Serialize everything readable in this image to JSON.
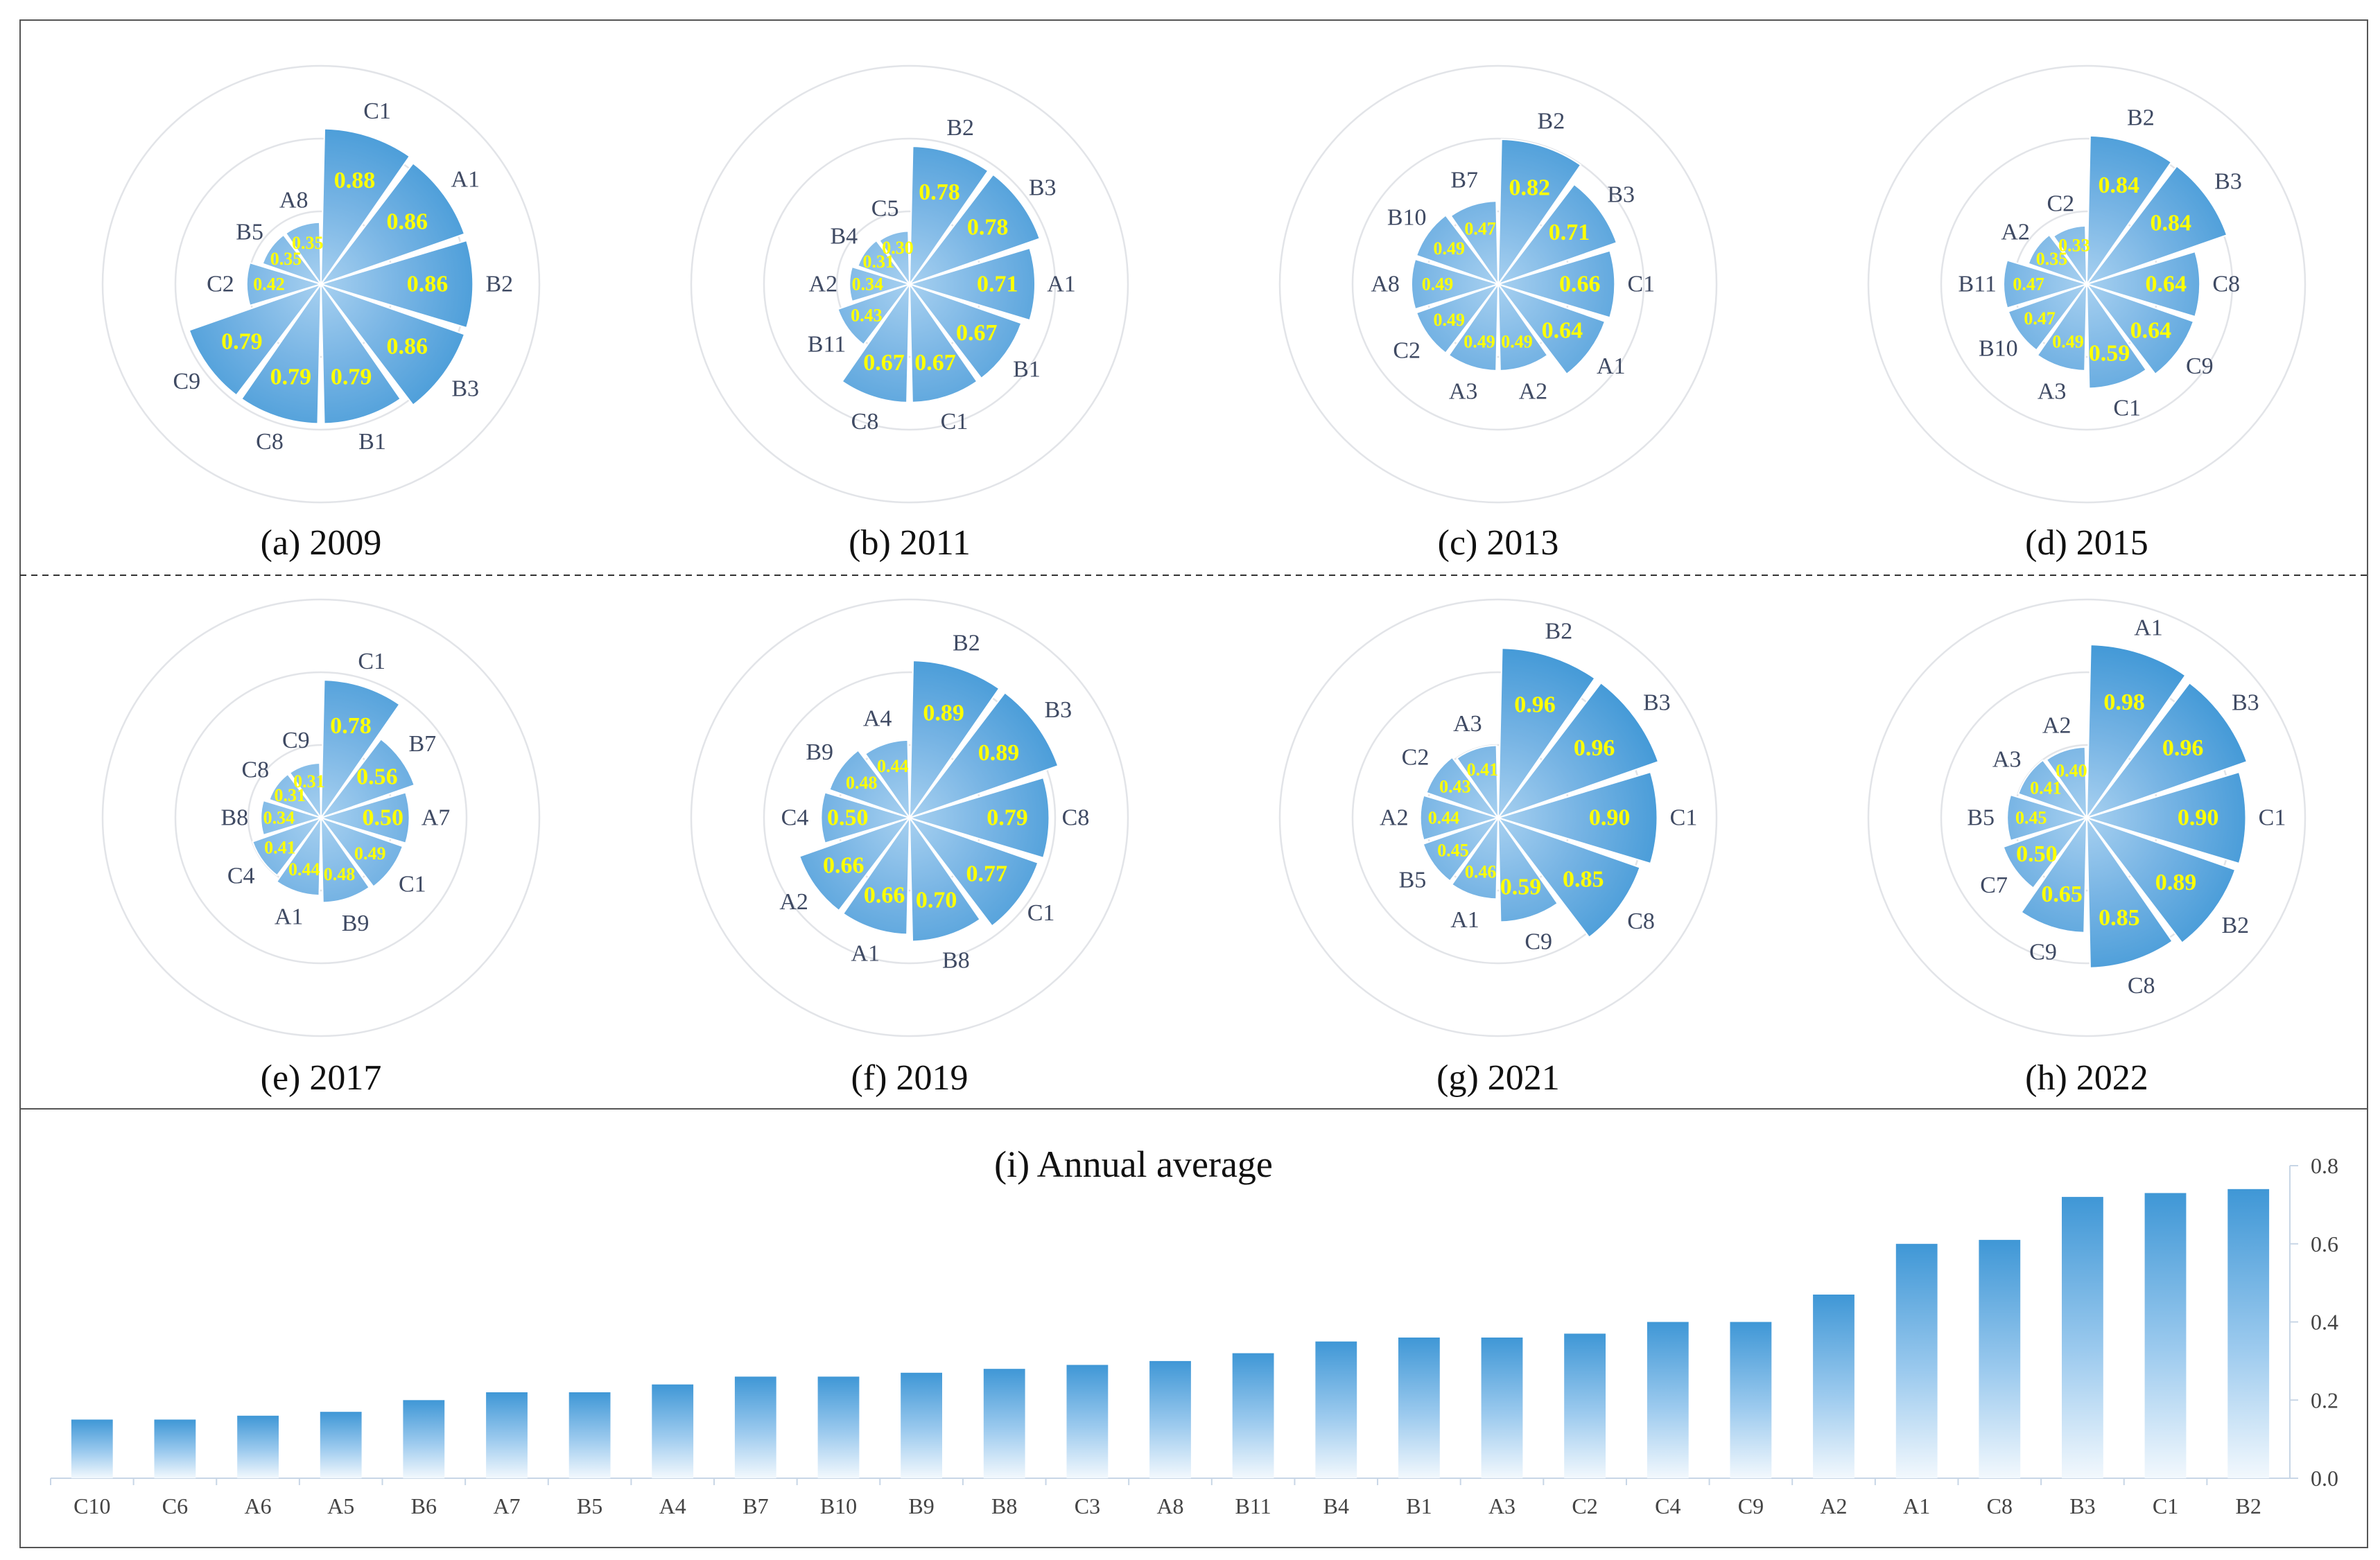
{
  "chart_data": [
    {
      "type": "polar-bar",
      "caption": "(a) 2009",
      "categories": [
        "C1",
        "A1",
        "B2",
        "B3",
        "B1",
        "C8",
        "C9",
        "C2",
        "B5",
        "A8"
      ],
      "values": [
        0.88,
        0.86,
        0.86,
        0.86,
        0.79,
        0.79,
        0.79,
        0.42,
        0.35,
        0.35
      ],
      "value_labels": [
        "0.88",
        "0.86",
        "0.86",
        "0.86",
        "0.79",
        "0.79",
        "0.79",
        "0.42",
        "0.35",
        "0.35"
      ],
      "rlim": [
        0,
        1
      ]
    },
    {
      "type": "polar-bar",
      "caption": "(b) 2011",
      "categories": [
        "B2",
        "B3",
        "A1",
        "B1",
        "C1",
        "C8",
        "B11",
        "A2",
        "B4",
        "C5"
      ],
      "values": [
        0.78,
        0.78,
        0.71,
        0.67,
        0.67,
        0.67,
        0.43,
        0.34,
        0.31,
        0.3
      ],
      "value_labels": [
        "0.78",
        "0.78",
        "0.71",
        "0.67",
        "0.67",
        "0.67",
        "0.43",
        "0.34",
        "0.31",
        "0.30"
      ],
      "rlim": [
        0,
        1
      ]
    },
    {
      "type": "polar-bar",
      "caption": "(c) 2013",
      "categories": [
        "B2",
        "B3",
        "C1",
        "A1",
        "A2",
        "A3",
        "C2",
        "A8",
        "B10",
        "B7"
      ],
      "values": [
        0.82,
        0.71,
        0.66,
        0.64,
        0.49,
        0.49,
        0.49,
        0.49,
        0.49,
        0.47
      ],
      "value_labels": [
        "0.82",
        "0.71",
        "0.66",
        "0.64",
        "0.49",
        "0.49",
        "0.49",
        "0.49",
        "0.49",
        "0.47"
      ],
      "rlim": [
        0,
        1
      ]
    },
    {
      "type": "polar-bar",
      "caption": "(d) 2015",
      "categories": [
        "B2",
        "B3",
        "C8",
        "C9",
        "C1",
        "A3",
        "B10",
        "B11",
        "A2",
        "C2"
      ],
      "values": [
        0.84,
        0.84,
        0.64,
        0.64,
        0.59,
        0.49,
        0.47,
        0.47,
        0.35,
        0.33
      ],
      "value_labels": [
        "0.84",
        "0.84",
        "0.64",
        "0.64",
        "0.59",
        "0.49",
        "0.47",
        "0.47",
        "0.35",
        "0.33"
      ],
      "rlim": [
        0,
        1
      ]
    },
    {
      "type": "polar-bar",
      "caption": "(e) 2017",
      "categories": [
        "C1",
        "B7",
        "A7",
        "C1",
        "B9",
        "A1",
        "C4",
        "B8",
        "C8",
        "C9"
      ],
      "values": [
        0.78,
        0.56,
        0.5,
        0.49,
        0.48,
        0.44,
        0.41,
        0.34,
        0.31,
        0.31
      ],
      "value_labels": [
        "0.78",
        "0.56",
        "0.50",
        "0.49",
        "0.48",
        "0.44",
        "0.41",
        "0.34",
        "0.31",
        "0.31"
      ],
      "rlim": [
        0,
        1
      ]
    },
    {
      "type": "polar-bar",
      "caption": "(f) 2019",
      "categories": [
        "B2",
        "B3",
        "C8",
        "C1",
        "B8",
        "A1",
        "A2",
        "C4",
        "B9",
        "A4"
      ],
      "values": [
        0.89,
        0.89,
        0.79,
        0.77,
        0.7,
        0.66,
        0.66,
        0.5,
        0.48,
        0.44
      ],
      "value_labels": [
        "0.89",
        "0.89",
        "0.79",
        "0.77",
        "0.70",
        "0.66",
        "0.66",
        "0.50",
        "0.48",
        "0.44"
      ],
      "rlim": [
        0,
        1
      ]
    },
    {
      "type": "polar-bar",
      "caption": "(g) 2021",
      "categories": [
        "B2",
        "B3",
        "C1",
        "C8",
        "C9",
        "A1",
        "B5",
        "A2",
        "C2",
        "A3"
      ],
      "values": [
        0.96,
        0.96,
        0.9,
        0.85,
        0.59,
        0.46,
        0.45,
        0.44,
        0.43,
        0.41
      ],
      "value_labels": [
        "0.96",
        "0.96",
        "0.90",
        "0.85",
        "0.59",
        "0.46",
        "0.45",
        "0.44",
        "0.43",
        "0.41"
      ],
      "rlim": [
        0,
        1
      ]
    },
    {
      "type": "polar-bar",
      "caption": "(h) 2022",
      "categories": [
        "A1",
        "B3",
        "C1",
        "B2",
        "C8",
        "C9",
        "C7",
        "B5",
        "A3",
        "A2"
      ],
      "values": [
        0.98,
        0.96,
        0.9,
        0.89,
        0.85,
        0.65,
        0.5,
        0.45,
        0.41,
        0.4
      ],
      "value_labels": [
        "0.98",
        "0.96",
        "0.90",
        "0.89",
        "0.85",
        "0.65",
        "0.50",
        "0.45",
        "0.41",
        "0.40"
      ],
      "rlim": [
        0,
        1
      ]
    },
    {
      "type": "bar",
      "title": "(i) Annual average",
      "categories": [
        "C10",
        "C6",
        "A6",
        "A5",
        "B6",
        "A7",
        "B5",
        "A4",
        "B7",
        "B10",
        "B9",
        "B8",
        "C3",
        "A8",
        "B11",
        "B4",
        "B1",
        "A3",
        "C2",
        "C4",
        "C9",
        "A2",
        "A1",
        "C8",
        "B3",
        "C1",
        "B2"
      ],
      "values": [
        0.15,
        0.15,
        0.16,
        0.17,
        0.2,
        0.22,
        0.22,
        0.24,
        0.26,
        0.26,
        0.27,
        0.28,
        0.29,
        0.3,
        0.32,
        0.35,
        0.36,
        0.36,
        0.37,
        0.4,
        0.4,
        0.47,
        0.6,
        0.61,
        0.72,
        0.73,
        0.74
      ],
      "ylim": [
        0,
        0.8
      ],
      "yticks": [
        "0.0",
        "0.2",
        "0.4",
        "0.6",
        "0.8"
      ],
      "ytick_values": [
        0,
        0.2,
        0.4,
        0.6,
        0.8
      ],
      "yaxis": "right"
    }
  ]
}
